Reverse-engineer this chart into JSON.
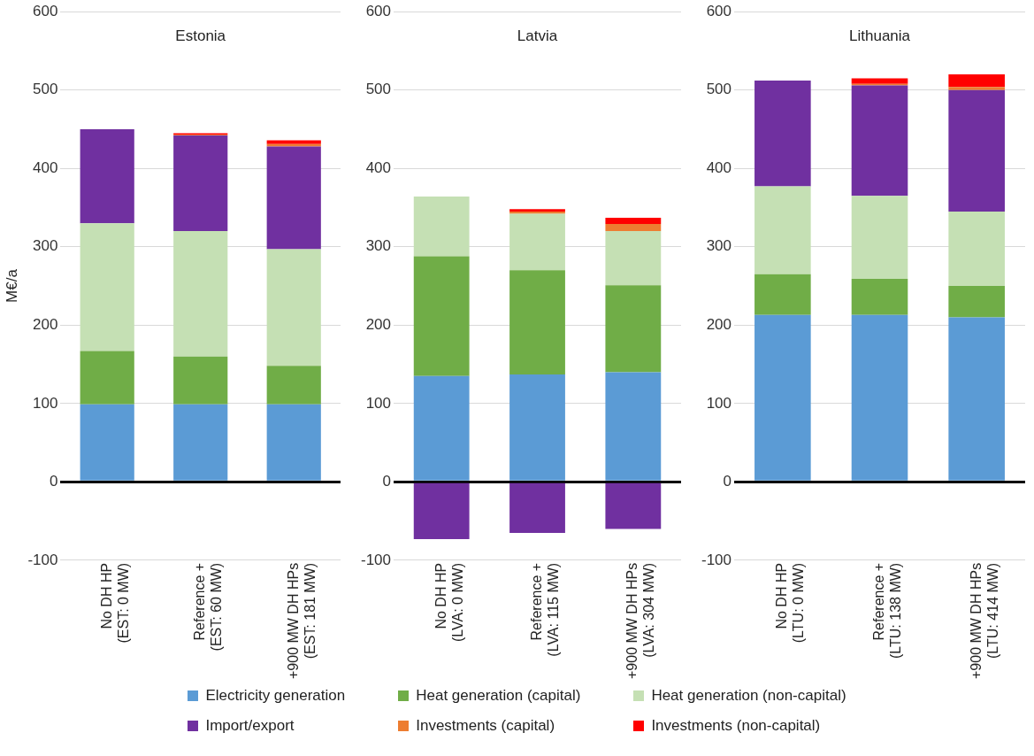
{
  "chart_data": [
    {
      "type": "bar",
      "title": "Estonia",
      "ylabel": "M€/a",
      "stacked": true,
      "grid": "y",
      "legend": "bottom",
      "ylim": [
        -100,
        600
      ],
      "yticks": [
        -100,
        0,
        100,
        200,
        300,
        400,
        500,
        600
      ],
      "categories": [
        "No DH HP\n(EST: 0 MW)",
        "Reference +\n(EST: 60 MW)",
        "+900 MW DH HPs\n(EST: 181 MW)"
      ],
      "series": [
        {
          "name": "Electricity generation",
          "color": "#5b9bd5",
          "values": [
            99,
            99,
            99
          ]
        },
        {
          "name": "Heat generation (capital)",
          "color": "#70ad47",
          "values": [
            68,
            61,
            49
          ]
        },
        {
          "name": "Heat generation (non-capital)",
          "color": "#c5e0b4",
          "values": [
            163,
            160,
            149
          ]
        },
        {
          "name": "Import/export",
          "color": "#7030a0",
          "values": [
            120,
            122,
            131
          ]
        },
        {
          "name": "Investments (capital)",
          "color": "#ed7d31",
          "values": [
            0,
            1,
            3
          ]
        },
        {
          "name": "Investments (non-capital)",
          "color": "#ff0000",
          "values": [
            0,
            2,
            5
          ]
        }
      ]
    },
    {
      "type": "bar",
      "title": "Latvia",
      "stacked": true,
      "grid": "y",
      "ylim": [
        -100,
        600
      ],
      "yticks": [
        -100,
        0,
        100,
        200,
        300,
        400,
        500,
        600
      ],
      "categories": [
        "No DH HP\n(LVA: 0 MW)",
        "Reference +\n(LVA: 115 MW)",
        "+900 MW DH HPs\n(LVA: 304 MW)"
      ],
      "series": [
        {
          "color": "#5b9bd5",
          "values": [
            135,
            137,
            140
          ]
        },
        {
          "color": "#70ad47",
          "values": [
            153,
            133,
            111
          ]
        },
        {
          "color": "#c5e0b4",
          "values": [
            76,
            72,
            69
          ]
        },
        {
          "color": "#7030a0",
          "values": [
            -73,
            -65,
            -60
          ]
        },
        {
          "color": "#ed7d31",
          "values": [
            0,
            3,
            9
          ]
        },
        {
          "color": "#ff0000",
          "values": [
            0,
            3,
            8
          ]
        }
      ]
    },
    {
      "type": "bar",
      "title": "Lithuania",
      "stacked": true,
      "grid": "y",
      "ylim": [
        -100,
        600
      ],
      "yticks": [
        -100,
        0,
        100,
        200,
        300,
        400,
        500,
        600
      ],
      "categories": [
        "No DH HP\n(LTU: 0 MW)",
        "Reference +\n(LTU: 138 MW)",
        "+900 MW DH HPs\n(LTU: 414 MW)"
      ],
      "series": [
        {
          "color": "#5b9bd5",
          "values": [
            213,
            213,
            210
          ]
        },
        {
          "color": "#70ad47",
          "values": [
            52,
            46,
            40
          ]
        },
        {
          "color": "#c5e0b4",
          "values": [
            112,
            106,
            95
          ]
        },
        {
          "color": "#7030a0",
          "values": [
            135,
            141,
            155
          ]
        },
        {
          "color": "#ed7d31",
          "values": [
            0,
            2,
            4
          ]
        },
        {
          "color": "#ff0000",
          "values": [
            0,
            7,
            16
          ]
        }
      ]
    }
  ]
}
